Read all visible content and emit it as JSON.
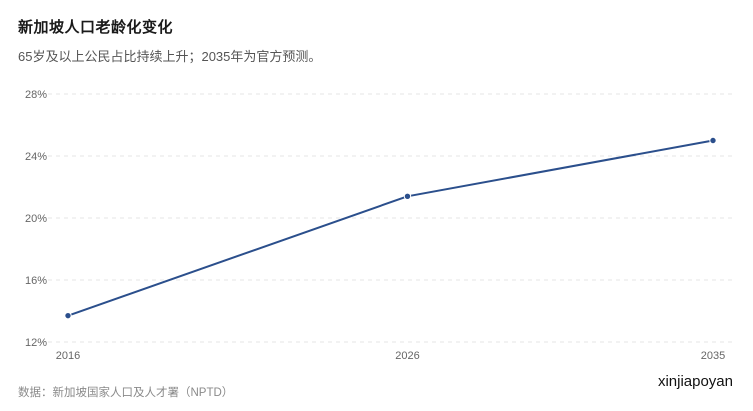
{
  "header": {
    "title": "新加坡人口老龄化变化",
    "subtitle": "65岁及以上公民占比持续上升；2035年为官方预测。"
  },
  "footer": {
    "source": "数据：新加坡国家人口及人才署（NPTD）",
    "watermark": "xinjiapoyan"
  },
  "colors": {
    "line": "#2b4f8c",
    "grid": "#e6e6e6"
  },
  "chart_data": {
    "type": "line",
    "x": [
      2016,
      2026,
      2035
    ],
    "x_tick_labels": [
      "2016",
      "2026",
      "2035"
    ],
    "series": [
      {
        "values": [
          13.7,
          21.4,
          25.0
        ]
      }
    ],
    "ylim": [
      12,
      28
    ],
    "y_ticks": [
      12,
      16,
      20,
      24,
      28
    ],
    "y_tick_labels": [
      "12%",
      "16%",
      "20%",
      "24%",
      "28%"
    ],
    "grid": true,
    "legend": "none"
  }
}
